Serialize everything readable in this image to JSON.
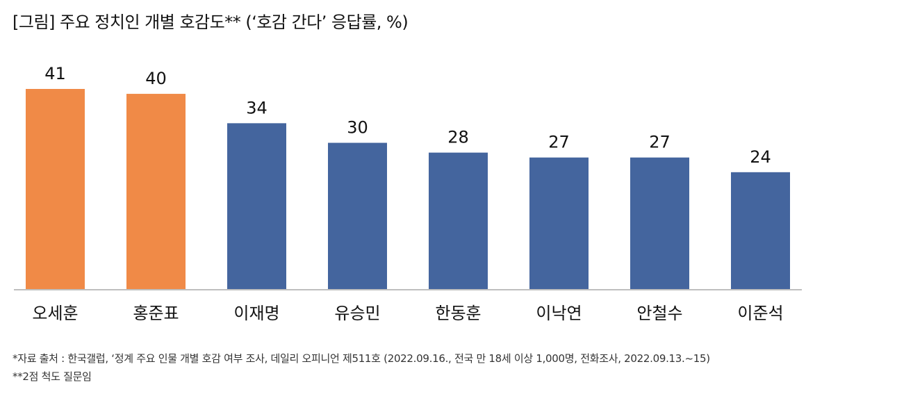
{
  "chart_data": {
    "type": "bar",
    "title": "[그림] 주요 정치인 개별 호감도** (‘호감 간다’ 응답률, %)",
    "categories": [
      "오세훈",
      "홍준표",
      "이재명",
      "유승민",
      "한동훈",
      "이낙연",
      "안철수",
      "이준석"
    ],
    "values": [
      41,
      40,
      34,
      30,
      28,
      27,
      27,
      24
    ],
    "highlight_categories": [
      "오세훈",
      "홍준표"
    ],
    "colors": {
      "highlight": "#F08A47",
      "default": "#44659E",
      "axis": "#BFBFBF"
    },
    "ylim": [
      0,
      41
    ],
    "grid": false,
    "legend": "none"
  },
  "footnotes": {
    "source": "*자료 출처 : 한국갤럽, ‘정계 주요 인물 개별 호감 여부 조사, 데일리 오피니언 제511호 (2022.09.16., 전국 만 18세 이상 1,000명, 전화조사, 2022.09.13.~15)",
    "note": "**2점 척도 질문임"
  }
}
